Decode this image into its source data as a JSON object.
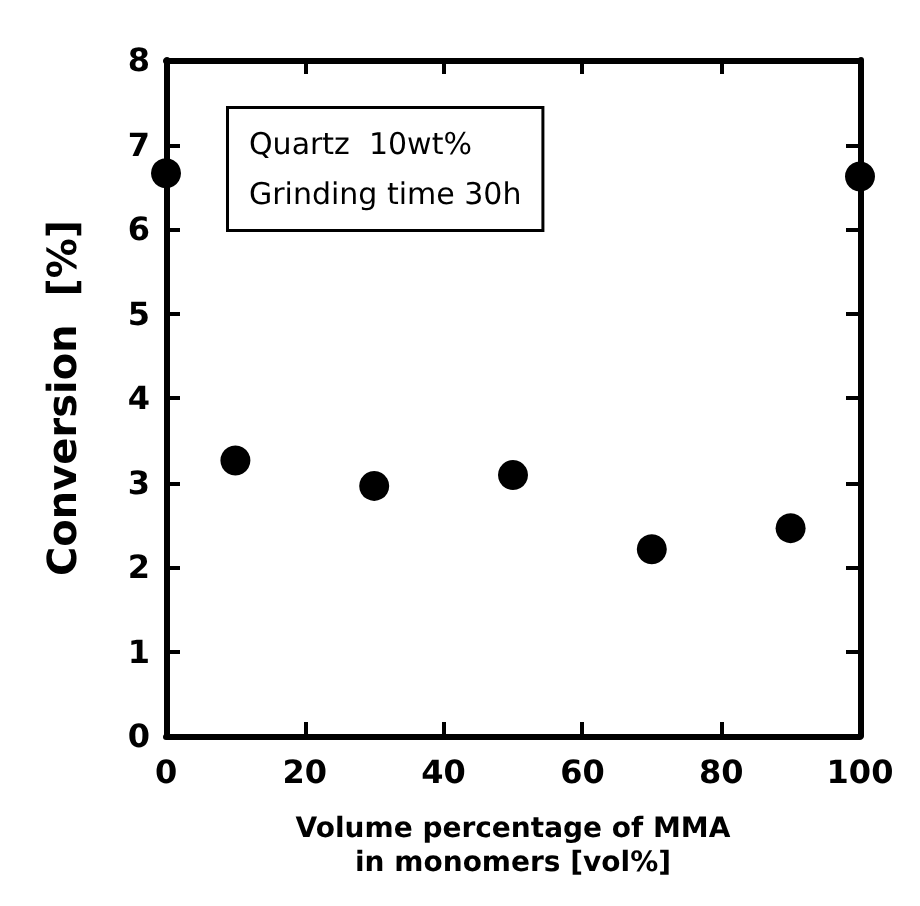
{
  "chart_data": {
    "type": "scatter",
    "xlabel": "Volume percentage of MMA\nin monomers [vol%]",
    "ylabel": "Conversion  [%]",
    "annotations": [
      "Quartz  10wt%\nGrinding time 30h"
    ],
    "x": [
      0,
      10,
      30,
      50,
      70,
      90,
      100
    ],
    "series": [
      {
        "color": "#000000",
        "values": [
          6.66,
          3.26,
          2.96,
          3.09,
          2.21,
          2.46,
          6.62
        ]
      }
    ],
    "xlim": [
      0,
      100
    ],
    "xticks": [
      0,
      20,
      40,
      60,
      80,
      100
    ],
    "ylim": [
      0,
      8
    ],
    "yticks": [
      0,
      1,
      2,
      3,
      4,
      5,
      6,
      7,
      8
    ],
    "grid": false,
    "marker": "circle"
  }
}
